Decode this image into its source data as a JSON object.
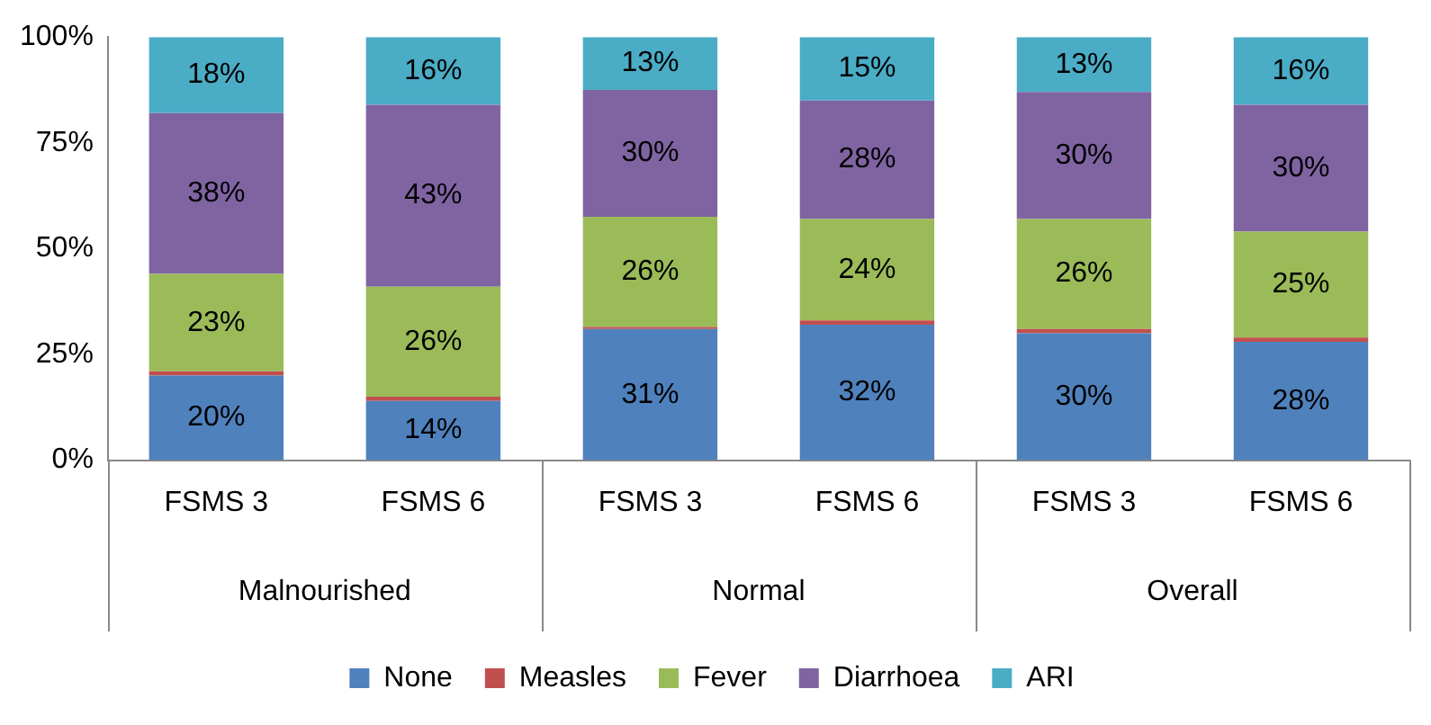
{
  "chart_data": {
    "type": "bar",
    "stacked": true,
    "categories": [
      "FSMS 3",
      "FSMS 6",
      "FSMS 3",
      "FSMS 6",
      "FSMS 3",
      "FSMS 6"
    ],
    "series": [
      {
        "name": "None",
        "color": "#4f81bd",
        "values": [
          20,
          14,
          31,
          32,
          30,
          28
        ],
        "value_labels": [
          "20%",
          "14%",
          "31%",
          "32%",
          "30%",
          "28%"
        ]
      },
      {
        "name": "Measles",
        "color": "#c0504d",
        "values": [
          1,
          1,
          0.5,
          1,
          1,
          1
        ],
        "value_labels": [
          null,
          null,
          null,
          null,
          null,
          null
        ]
      },
      {
        "name": "Fever",
        "color": "#9bbb59",
        "values": [
          23,
          26,
          26,
          24,
          26,
          25
        ],
        "value_labels": [
          "23%",
          "26%",
          "26%",
          "24%",
          "26%",
          "25%"
        ]
      },
      {
        "name": "Diarrhoea",
        "color": "#8064a2",
        "values": [
          38,
          43,
          30,
          28,
          30,
          30
        ],
        "value_labels": [
          "38%",
          "43%",
          "30%",
          "28%",
          "30%",
          "30%"
        ]
      },
      {
        "name": "ARI",
        "color": "#4bacc6",
        "values": [
          18,
          16,
          12.5,
          15,
          13,
          16
        ],
        "value_labels": [
          "18%",
          "16%",
          "13%",
          "15%",
          "13%",
          "16%"
        ]
      }
    ],
    "ylim": [
      0,
      100
    ],
    "yticks": [
      {
        "value": 0,
        "label": "0%"
      },
      {
        "value": 25,
        "label": "25%"
      },
      {
        "value": 50,
        "label": "50%"
      },
      {
        "value": 75,
        "label": "75%"
      },
      {
        "value": 100,
        "label": "100%"
      }
    ],
    "grid": false,
    "legend": "bottom",
    "annotations": [
      "Malnourished",
      "Normal",
      "Overall"
    ]
  }
}
